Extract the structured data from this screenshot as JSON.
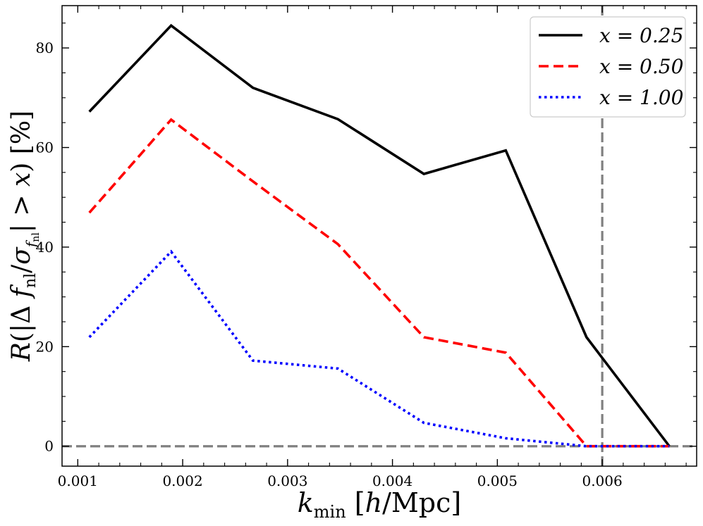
{
  "chart_data": {
    "type": "line",
    "title": "",
    "xlabel": "k_min [h/Mpc]",
    "ylabel": "R(|Δ f_nl/σ_f_nl| > x) [%]",
    "xlim": [
      0.00085,
      0.0069
    ],
    "ylim": [
      -4,
      88.5
    ],
    "x_ticks": [
      0.001,
      0.002,
      0.003,
      0.004,
      0.005,
      0.006
    ],
    "x_tick_labels": [
      "0.001",
      "0.002",
      "0.003",
      "0.004",
      "0.005",
      "0.006"
    ],
    "y_ticks": [
      0,
      20,
      40,
      60,
      80
    ],
    "y_tick_labels": [
      "0",
      "20",
      "40",
      "60",
      "80"
    ],
    "x": [
      0.00111,
      0.00189,
      0.00267,
      0.00348,
      0.0043,
      0.00508,
      0.00585,
      0.00664
    ],
    "series": [
      {
        "name": "x = 0.25",
        "color": "#000000",
        "dash": "solid",
        "values": [
          67.2,
          84.5,
          72.0,
          65.7,
          54.7,
          59.4,
          21.9,
          0.0
        ]
      },
      {
        "name": "x = 0.50",
        "color": "#ff0000",
        "dash": "dashed",
        "values": [
          46.9,
          65.6,
          53.2,
          40.6,
          21.9,
          18.8,
          0.0,
          0.0
        ]
      },
      {
        "name": "x = 1.00",
        "color": "#0000ff",
        "dash": "dotted",
        "values": [
          21.9,
          39.1,
          17.2,
          15.6,
          4.7,
          1.6,
          0.0,
          0.0
        ]
      }
    ],
    "reference_lines": [
      {
        "orientation": "horizontal",
        "value": 0,
        "color": "#808080",
        "dash": "dashed"
      },
      {
        "orientation": "vertical",
        "value": 0.006,
        "color": "#808080",
        "dash": "dashed"
      }
    ],
    "legend": {
      "placement": "top-right",
      "entries": [
        "x = 0.25",
        "x = 0.50",
        "x = 1.00"
      ]
    },
    "grid": false
  }
}
